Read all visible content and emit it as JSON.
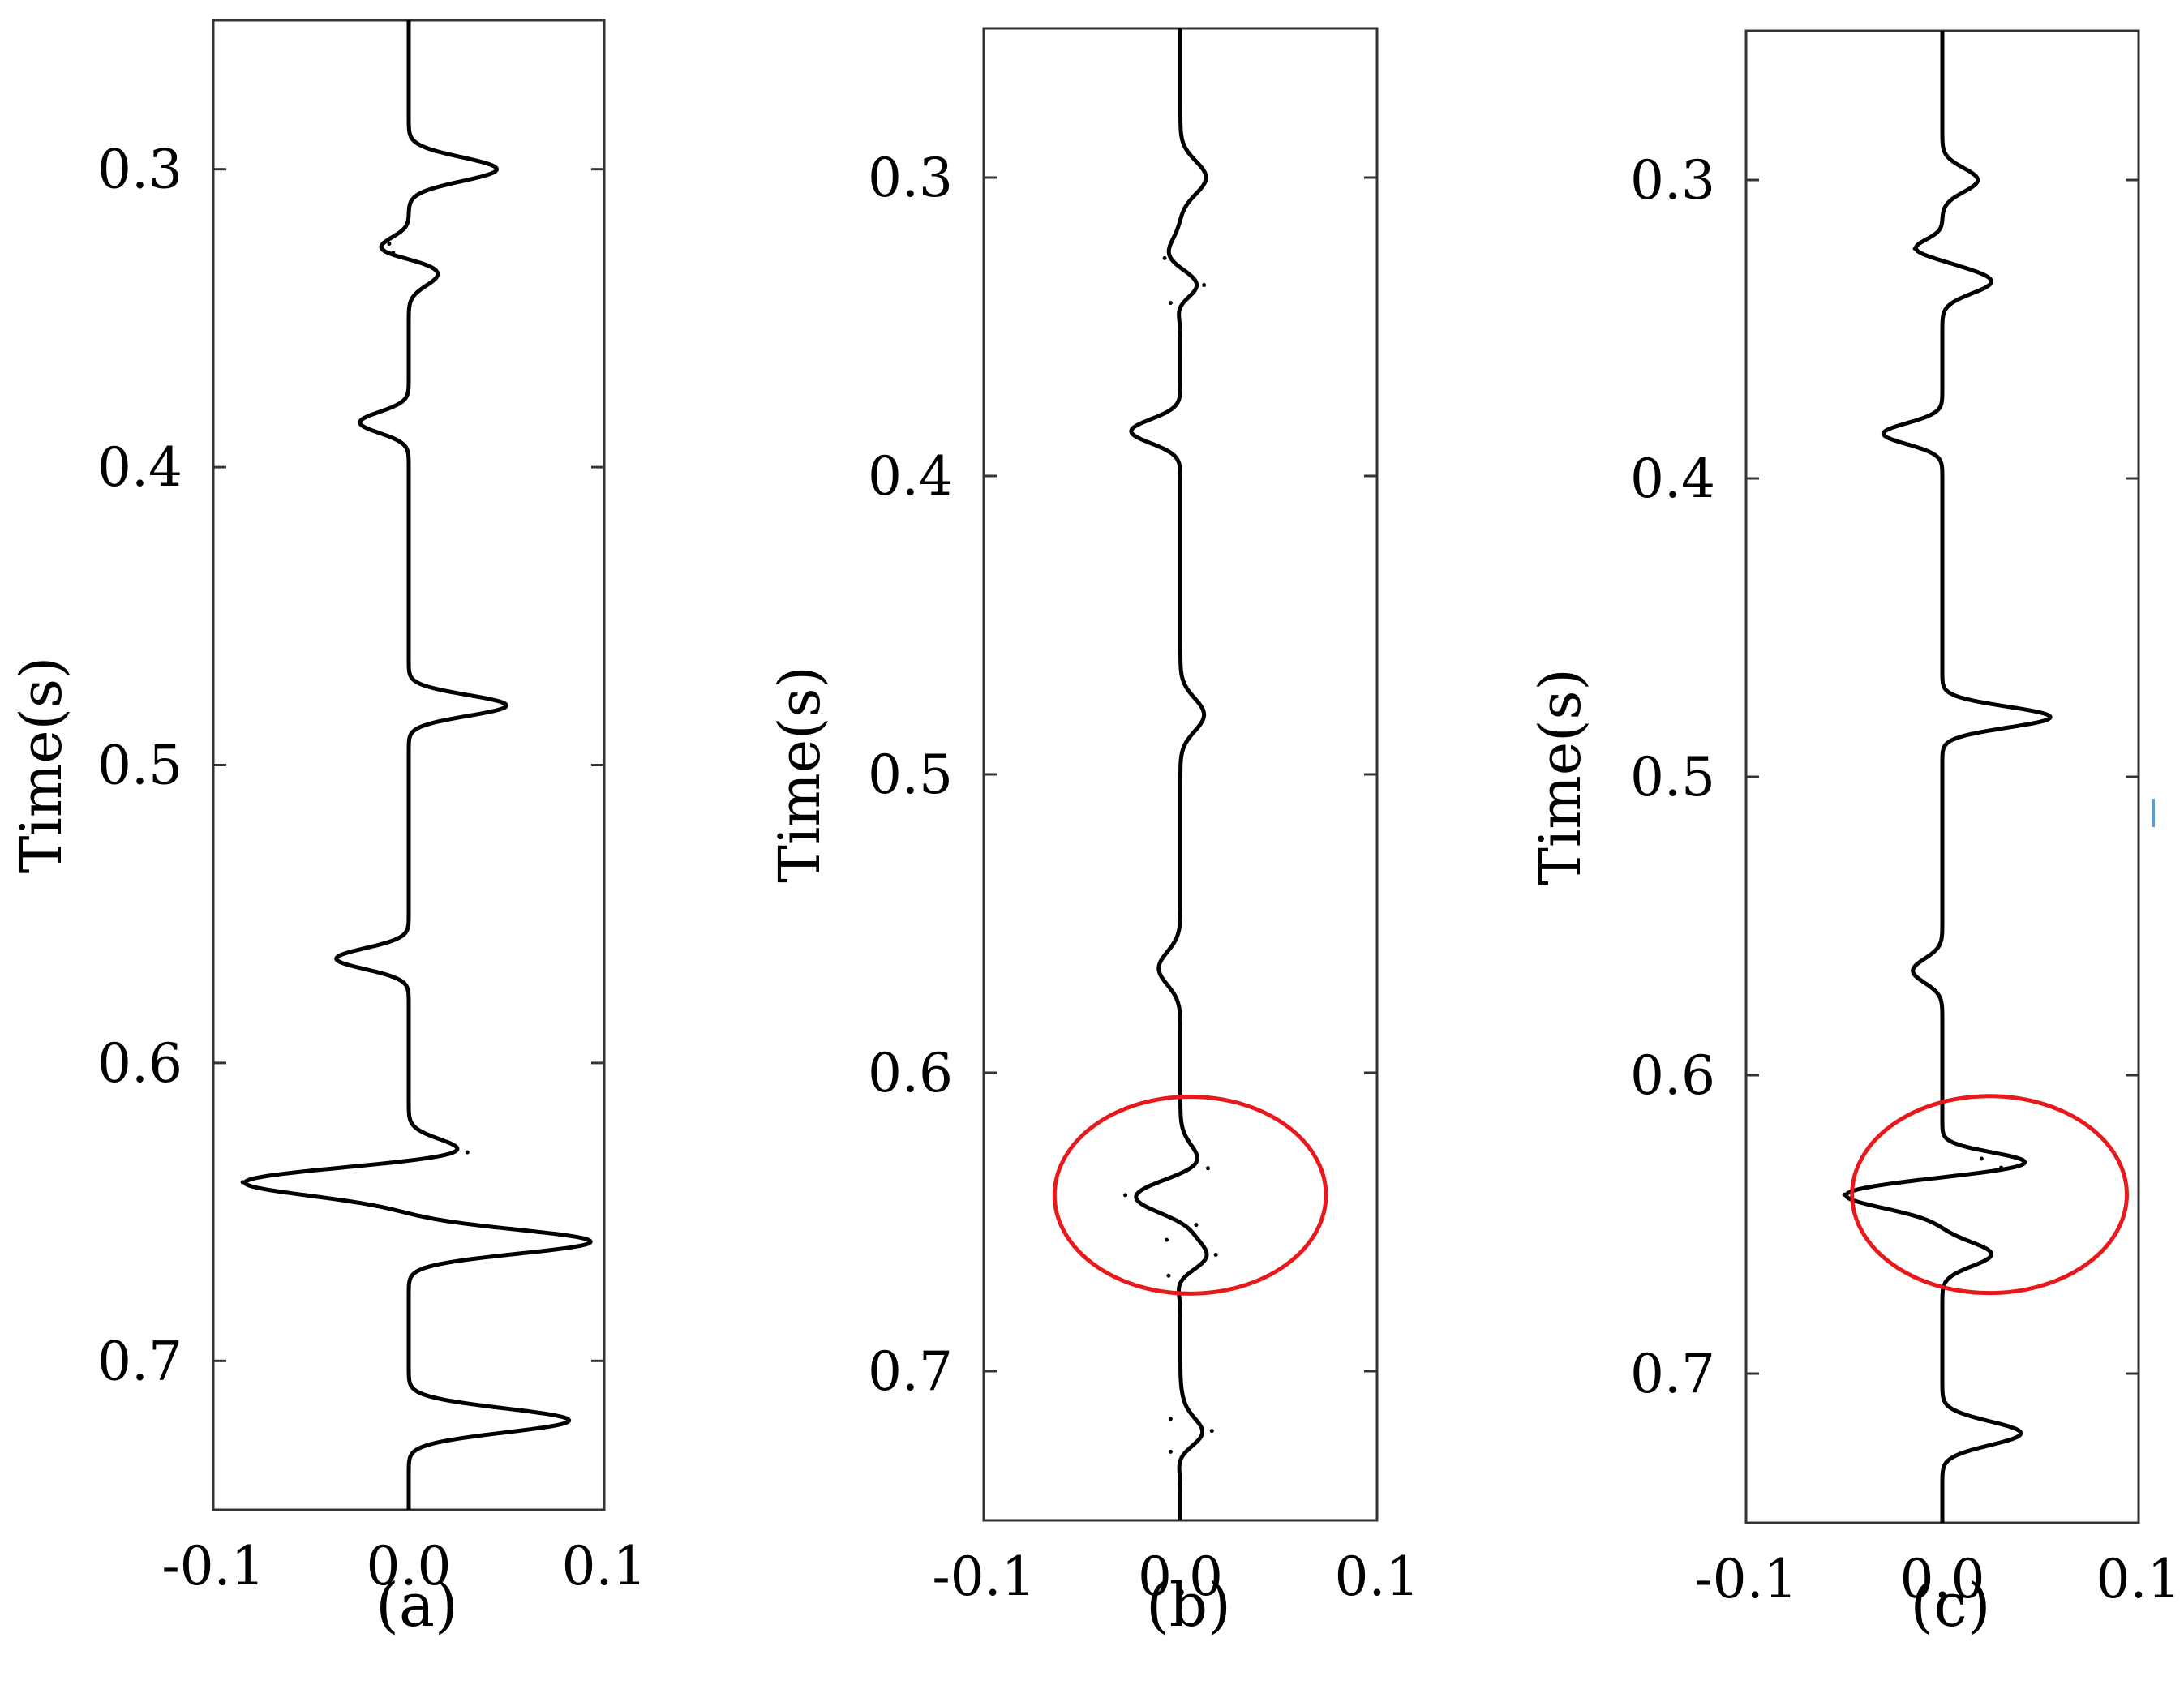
{
  "chart_data": [
    {
      "type": "line",
      "panel_label": "(a)",
      "ylabel": "Time(s)",
      "xlabel": "",
      "xlim": [
        -0.1,
        0.1
      ],
      "ylim": [
        0.25,
        0.75
      ],
      "y_inverted": true,
      "x_ticks": [
        -0.1,
        0.0,
        0.1
      ],
      "x_tick_labels": [
        "-0.1",
        "0.0",
        "0.1"
      ],
      "y_ticks": [
        0.3,
        0.4,
        0.5,
        0.6,
        0.7
      ],
      "y_tick_labels": [
        "0.3",
        "0.4",
        "0.5",
        "0.6",
        "0.7"
      ],
      "grid": false,
      "spikes": [
        {
          "t": 0.3,
          "amp": 0.045,
          "w": 0.004
        },
        {
          "t": 0.325,
          "amp": -0.01,
          "w": 0.003
        },
        {
          "t": 0.328,
          "amp": -0.008,
          "w": 0.0025
        },
        {
          "t": 0.335,
          "amp": 0.015,
          "w": 0.004
        },
        {
          "t": 0.385,
          "amp": -0.025,
          "w": 0.0035
        },
        {
          "t": 0.48,
          "amp": 0.05,
          "w": 0.0035
        },
        {
          "t": 0.565,
          "amp": -0.037,
          "w": 0.0035
        },
        {
          "t": 0.63,
          "amp": 0.03,
          "w": 0.004
        },
        {
          "t": 0.64,
          "amp": -0.085,
          "w": 0.0045
        },
        {
          "t": 0.66,
          "amp": 0.093,
          "w": 0.004
        },
        {
          "t": 0.72,
          "amp": 0.082,
          "w": 0.004
        }
      ],
      "annotation": null
    },
    {
      "type": "line",
      "panel_label": "(b)",
      "ylabel": "Time(s)",
      "xlabel": "",
      "xlim": [
        -0.1,
        0.1
      ],
      "ylim": [
        0.25,
        0.75
      ],
      "y_inverted": true,
      "x_ticks": [
        -0.1,
        0.0,
        0.1
      ],
      "x_tick_labels": [
        "-0.1",
        "0.0",
        "0.1"
      ],
      "y_ticks": [
        0.3,
        0.4,
        0.5,
        0.6,
        0.7
      ],
      "y_tick_labels": [
        "0.3",
        "0.4",
        "0.5",
        "0.6",
        "0.7"
      ],
      "grid": false,
      "spikes": [
        {
          "t": 0.3,
          "amp": 0.013,
          "w": 0.0055
        },
        {
          "t": 0.327,
          "amp": -0.008,
          "w": 0.0055
        },
        {
          "t": 0.336,
          "amp": 0.012,
          "w": 0.0055
        },
        {
          "t": 0.342,
          "amp": -0.005,
          "w": 0.004
        },
        {
          "t": 0.385,
          "amp": -0.025,
          "w": 0.004
        },
        {
          "t": 0.48,
          "amp": 0.012,
          "w": 0.0055
        },
        {
          "t": 0.565,
          "amp": -0.011,
          "w": 0.0055
        },
        {
          "t": 0.632,
          "amp": 0.014,
          "w": 0.006
        },
        {
          "t": 0.641,
          "amp": -0.028,
          "w": 0.006
        },
        {
          "t": 0.651,
          "amp": 0.008,
          "w": 0.005
        },
        {
          "t": 0.656,
          "amp": -0.007,
          "w": 0.0045
        },
        {
          "t": 0.661,
          "amp": 0.018,
          "w": 0.006
        },
        {
          "t": 0.668,
          "amp": -0.006,
          "w": 0.0045
        },
        {
          "t": 0.716,
          "amp": -0.005,
          "w": 0.0045
        },
        {
          "t": 0.72,
          "amp": 0.016,
          "w": 0.006
        },
        {
          "t": 0.727,
          "amp": -0.005,
          "w": 0.0045
        }
      ],
      "annotation": {
        "shape": "ellipse",
        "color": "#e8191c",
        "cx": 0.005,
        "cy": 0.641,
        "rx": 0.069,
        "ry": 0.033
      }
    },
    {
      "type": "line",
      "panel_label": "(c)",
      "ylabel": "Time(s)",
      "xlabel": "",
      "xlim": [
        -0.1,
        0.1
      ],
      "ylim": [
        0.25,
        0.75
      ],
      "y_inverted": true,
      "x_ticks": [
        -0.1,
        0.0,
        0.1
      ],
      "x_tick_labels": [
        "-0.1",
        "0.0",
        "0.1"
      ],
      "y_ticks": [
        0.3,
        0.4,
        0.5,
        0.6,
        0.7
      ],
      "y_tick_labels": [
        "0.3",
        "0.4",
        "0.5",
        "0.6",
        "0.7"
      ],
      "grid": false,
      "spikes": [
        {
          "t": 0.3,
          "amp": 0.018,
          "w": 0.004
        },
        {
          "t": 0.323,
          "amp": -0.014,
          "w": 0.003
        },
        {
          "t": 0.334,
          "amp": 0.025,
          "w": 0.004
        },
        {
          "t": 0.385,
          "amp": -0.03,
          "w": 0.0035
        },
        {
          "t": 0.48,
          "amp": 0.055,
          "w": 0.0035
        },
        {
          "t": 0.565,
          "amp": -0.015,
          "w": 0.004
        },
        {
          "t": 0.628,
          "amp": 0.02,
          "w": 0.003
        },
        {
          "t": 0.631,
          "amp": 0.03,
          "w": 0.0035
        },
        {
          "t": 0.64,
          "amp": -0.05,
          "w": 0.0045
        },
        {
          "t": 0.66,
          "amp": 0.025,
          "w": 0.004
        },
        {
          "t": 0.72,
          "amp": 0.04,
          "w": 0.004
        }
      ],
      "annotation": {
        "shape": "ellipse",
        "color": "#e8191c",
        "cx": 0.024,
        "cy": 0.64,
        "rx": 0.07,
        "ry": 0.033
      }
    }
  ],
  "colors": {
    "trace": "#000000",
    "axes": "#333333",
    "annotation": "#e8191c"
  }
}
